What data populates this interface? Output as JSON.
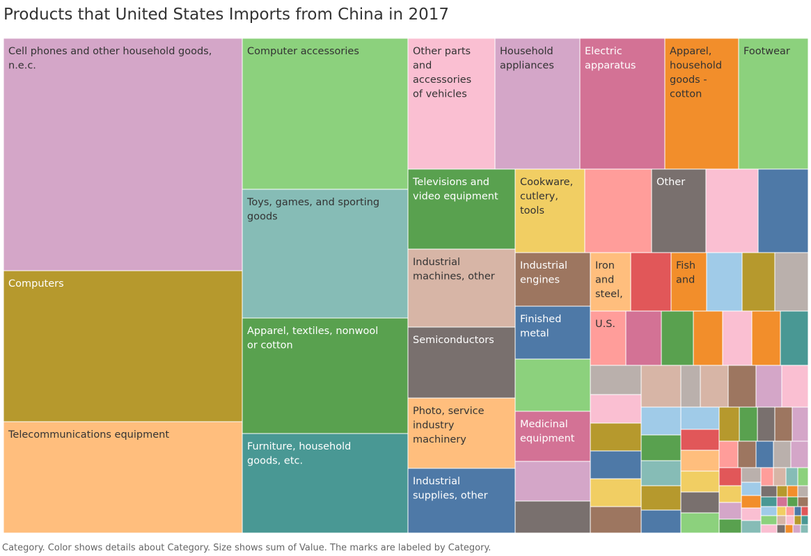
{
  "chart_data": {
    "type": "treemap",
    "title": "Products that United States Imports from China in 2017",
    "caption": "Category.  Color shows details about Category.  Size shows sum of Value.  The marks are labeled by Category.",
    "items": [
      {
        "label": "Cell phones and other household goods, n.e.c.",
        "color": "#d4a6c8"
      },
      {
        "label": "Computers",
        "color": "#b6992d"
      },
      {
        "label": "Telecommunications equipment",
        "color": "#ffbe7d"
      },
      {
        "label": "Computer accessories",
        "color": "#8cd17d"
      },
      {
        "label": "Toys, games, and sporting goods",
        "color": "#86bcb6"
      },
      {
        "label": "Apparel, textiles, nonwool or cotton",
        "color": "#59a14f"
      },
      {
        "label": "Furniture, household goods, etc.",
        "color": "#499894"
      },
      {
        "label": "Other parts and accessories of vehicles",
        "color": "#fabfd2"
      },
      {
        "label": "Household appliances",
        "color": "#d4a6c8"
      },
      {
        "label": "Electric apparatus",
        "color": "#d37295"
      },
      {
        "label": "Apparel, household goods - cotton",
        "color": "#f28e2b"
      },
      {
        "label": "Footwear",
        "color": "#8cd17d"
      },
      {
        "label": "Televisions and video equipment",
        "color": "#59a14f"
      },
      {
        "label": "Cookware, cutlery, tools",
        "color": "#f1ce63"
      },
      {
        "label": "",
        "color": "#ff9d9a"
      },
      {
        "label": "Other",
        "color": "#79706e"
      },
      {
        "label": "",
        "color": "#fabfd2"
      },
      {
        "label": "",
        "color": "#4e79a7"
      },
      {
        "label": "Industrial machines, other",
        "color": "#d7b5a6"
      },
      {
        "label": "Semiconductors",
        "color": "#79706e"
      },
      {
        "label": "Photo, service industry machinery",
        "color": "#ffbe7d"
      },
      {
        "label": "Industrial supplies, other",
        "color": "#4e79a7"
      },
      {
        "label": "Industrial engines",
        "color": "#9d7660"
      },
      {
        "label": "Finished metal",
        "color": "#4e79a7"
      },
      {
        "label": "",
        "color": "#8cd17d"
      },
      {
        "label": "Medicinal equipment",
        "color": "#d37295"
      },
      {
        "label": "",
        "color": "#d4a6c8"
      },
      {
        "label": "",
        "color": "#79706e"
      },
      {
        "label": "Iron and steel,",
        "color": "#ffbe7d"
      },
      {
        "label": "",
        "color": "#e15759"
      },
      {
        "label": "Fish and",
        "color": "#f28e2b"
      },
      {
        "label": "",
        "color": "#a0cbe8"
      },
      {
        "label": "",
        "color": "#b6992d"
      },
      {
        "label": "",
        "color": "#bab0ac"
      },
      {
        "label": "U.S.",
        "color": "#ff9d9a"
      },
      {
        "label": "",
        "color": "#d37295"
      },
      {
        "label": "",
        "color": "#59a14f"
      },
      {
        "label": "",
        "color": "#f28e2b"
      },
      {
        "label": "",
        "color": "#fabfd2"
      },
      {
        "label": "",
        "color": "#f28e2b"
      },
      {
        "label": "",
        "color": "#499894"
      }
    ]
  }
}
